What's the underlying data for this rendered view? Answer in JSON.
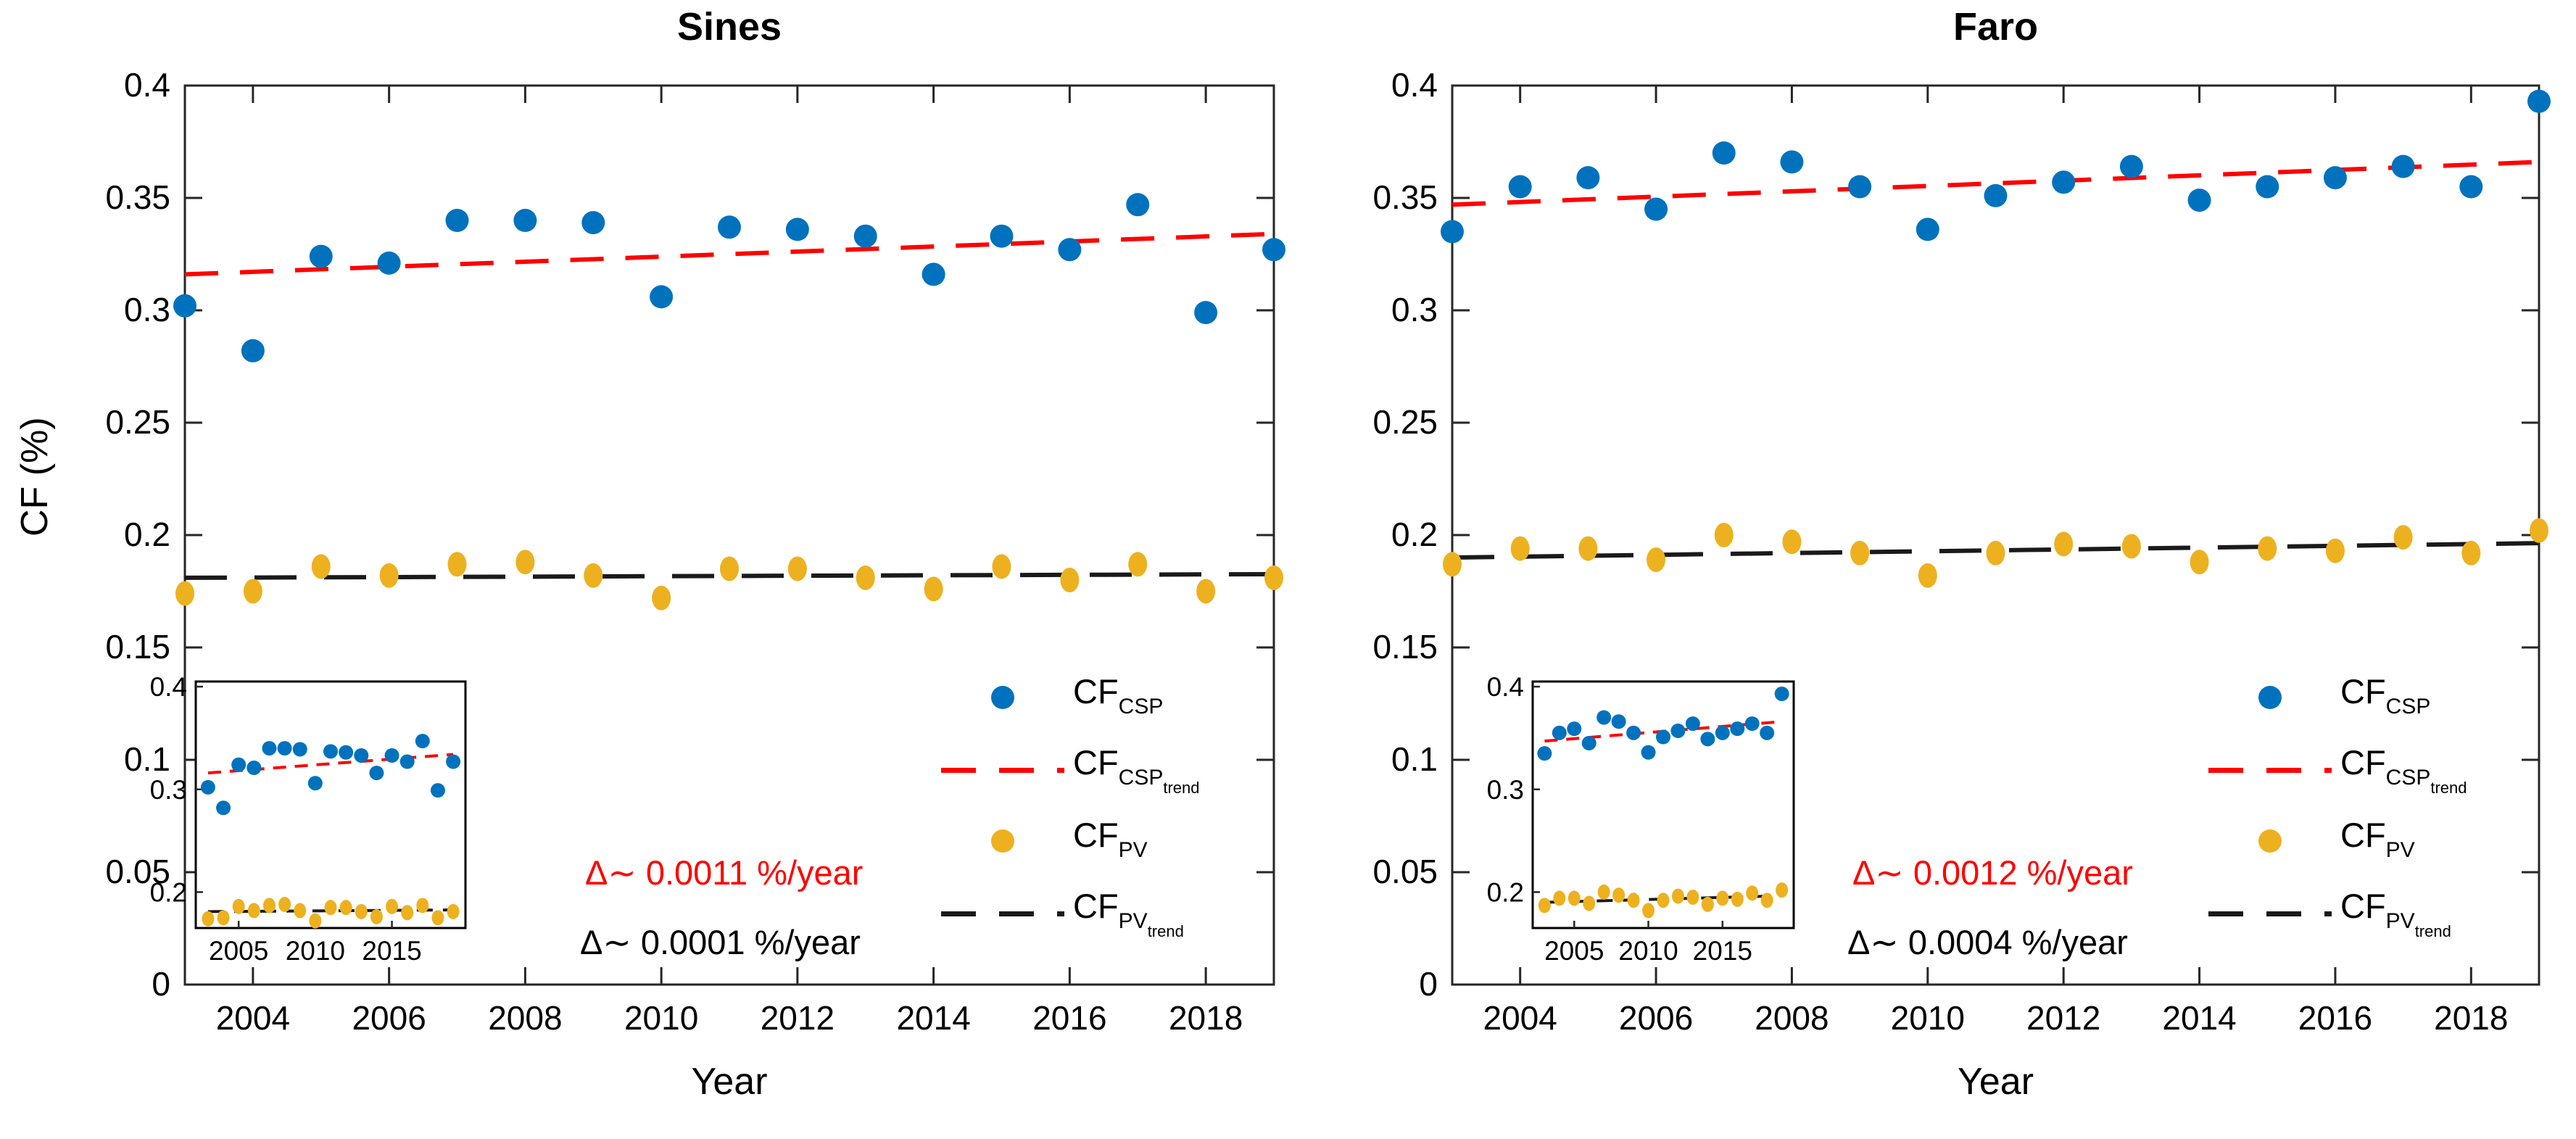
{
  "page": {
    "background": "#ffffff"
  },
  "colors": {
    "csp_marker": "#0072BD",
    "pv_marker": "#EDB120",
    "csp_trend": "#FF0000",
    "pv_trend": "#1a1a1a",
    "axis": "#262626",
    "text": "#000000"
  },
  "legend": {
    "items": [
      {
        "marker": "dot",
        "color": "#0072BD",
        "main": "CF",
        "sub": "CSP",
        "subsub": ""
      },
      {
        "marker": "dash",
        "color": "#FF0000",
        "main": "CF",
        "sub": "CSP",
        "subsub": "trend"
      },
      {
        "marker": "dot",
        "color": "#EDB120",
        "main": "CF",
        "sub": "PV",
        "subsub": ""
      },
      {
        "marker": "dash",
        "color": "#1a1a1a",
        "main": "CF",
        "sub": "PV",
        "subsub": "trend"
      }
    ]
  },
  "chart_data": [
    {
      "type": "scatter",
      "title": "Sines",
      "xlabel": "Year",
      "ylabel": "CF (%)",
      "xlim": [
        2003,
        2019
      ],
      "ylim": [
        0,
        0.4
      ],
      "xticks": [
        2004,
        2006,
        2008,
        2010,
        2012,
        2014,
        2016,
        2018
      ],
      "yticks": [
        0,
        0.05,
        0.1,
        0.15,
        0.2,
        0.25,
        0.3,
        0.35,
        0.4
      ],
      "ytick_labels": [
        "0",
        "0.05",
        "0.1",
        "0.15",
        "0.2",
        "0.25",
        "0.3",
        "0.35",
        "0.4"
      ],
      "grid": false,
      "legend_position": "lower right, no box",
      "x": [
        2003,
        2004,
        2005,
        2006,
        2007,
        2008,
        2009,
        2010,
        2011,
        2012,
        2013,
        2014,
        2015,
        2016,
        2017,
        2018,
        2019
      ],
      "series": [
        {
          "name": "CF_CSP",
          "color": "#0072BD",
          "values": [
            0.302,
            0.282,
            0.324,
            0.321,
            0.34,
            0.34,
            0.339,
            0.306,
            0.337,
            0.336,
            0.333,
            0.316,
            0.333,
            0.327,
            0.347,
            0.299,
            0.327
          ]
        },
        {
          "name": "CF_PV",
          "color": "#EDB120",
          "values": [
            0.174,
            0.175,
            0.186,
            0.182,
            0.187,
            0.188,
            0.182,
            0.172,
            0.185,
            0.185,
            0.181,
            0.176,
            0.186,
            0.18,
            0.187,
            0.175,
            0.181
          ]
        }
      ],
      "trends": [
        {
          "name": "CF_CSP_trend",
          "color": "#FF0000",
          "start": 0.316,
          "end": 0.334,
          "slope_label": "0.0011"
        },
        {
          "name": "CF_PV_trend",
          "color": "#1a1a1a",
          "start": 0.181,
          "end": 0.1826,
          "slope_label": "0.0001"
        }
      ],
      "annotations": [
        {
          "text": "Δ∼ 0.0011 %/year",
          "color": "#FF0000"
        },
        {
          "text": "Δ∼ 0.0001 %/year",
          "color": "#000000"
        }
      ],
      "inset": {
        "ylim": [
          0.165,
          0.405
        ],
        "xlim": [
          2002.2,
          2019.8
        ],
        "yticks": [
          0.4,
          0.3,
          0.2
        ],
        "ytick_labels": [
          "0.4",
          "0.3",
          "0.2"
        ],
        "xticks": [
          2005,
          2010,
          2015
        ],
        "xtick_labels": [
          "2005",
          "2010",
          "2015"
        ]
      }
    },
    {
      "type": "scatter",
      "title": "Faro",
      "xlabel": "Year",
      "ylabel": "",
      "xlim": [
        2003,
        2019
      ],
      "ylim": [
        0,
        0.4
      ],
      "xticks": [
        2004,
        2006,
        2008,
        2010,
        2012,
        2014,
        2016,
        2018
      ],
      "yticks": [
        0,
        0.05,
        0.1,
        0.15,
        0.2,
        0.25,
        0.3,
        0.35,
        0.4
      ],
      "ytick_labels": [
        "0",
        "0.05",
        "0.1",
        "0.15",
        "0.2",
        "0.25",
        "0.3",
        "0.35",
        "0.4"
      ],
      "grid": false,
      "legend_position": "lower right, no box",
      "x": [
        2003,
        2004,
        2005,
        2006,
        2007,
        2008,
        2009,
        2010,
        2011,
        2012,
        2013,
        2014,
        2015,
        2016,
        2017,
        2018,
        2019
      ],
      "series": [
        {
          "name": "CF_CSP",
          "color": "#0072BD",
          "values": [
            0.335,
            0.355,
            0.359,
            0.345,
            0.37,
            0.366,
            0.355,
            0.336,
            0.351,
            0.357,
            0.364,
            0.349,
            0.355,
            0.359,
            0.364,
            0.355,
            0.393
          ]
        },
        {
          "name": "CF_PV",
          "color": "#EDB120",
          "values": [
            0.187,
            0.194,
            0.194,
            0.189,
            0.2,
            0.197,
            0.192,
            0.182,
            0.192,
            0.196,
            0.195,
            0.188,
            0.194,
            0.193,
            0.199,
            0.192,
            0.202
          ]
        }
      ],
      "trends": [
        {
          "name": "CF_CSP_trend",
          "color": "#FF0000",
          "start": 0.347,
          "end": 0.366,
          "slope_label": "0.0012"
        },
        {
          "name": "CF_PV_trend",
          "color": "#1a1a1a",
          "start": 0.19,
          "end": 0.1964,
          "slope_label": "0.0004"
        }
      ],
      "annotations": [
        {
          "text": "Δ∼ 0.0012 %/year",
          "color": "#FF0000"
        },
        {
          "text": "Δ∼ 0.0004 %/year",
          "color": "#000000"
        }
      ],
      "inset": {
        "ylim": [
          0.165,
          0.405
        ],
        "xlim": [
          2002.2,
          2019.8
        ],
        "yticks": [
          0.4,
          0.3,
          0.2
        ],
        "ytick_labels": [
          "0.4",
          "0.3",
          "0.2"
        ],
        "xticks": [
          2005,
          2010,
          2015
        ],
        "xtick_labels": [
          "2005",
          "2010",
          "2015"
        ]
      }
    }
  ]
}
